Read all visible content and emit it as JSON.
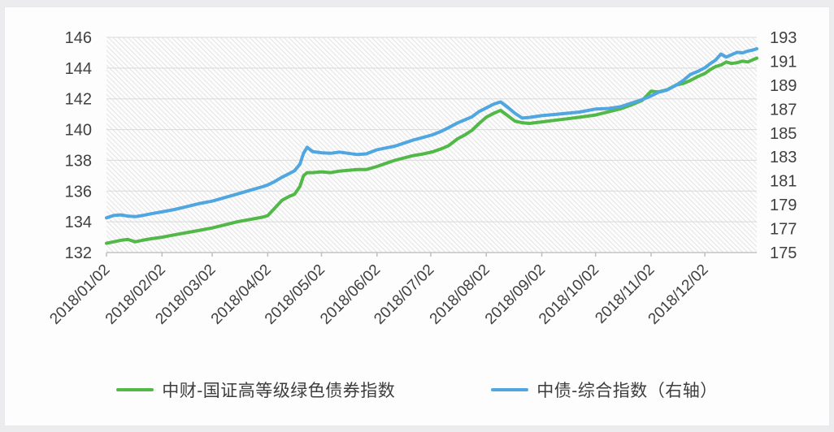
{
  "page": {
    "background_color": "#ececee",
    "card_color": "#fdfdfd"
  },
  "chart_data": {
    "type": "line",
    "title": "",
    "xlabel": "",
    "ylabel_left": "",
    "ylabel_right": "",
    "grid": "horizontal",
    "plot_background": "diagonal-hatch",
    "legend_position": "bottom",
    "x_axis": {
      "tick_labels": [
        "2018/01/02",
        "2018/02/02",
        "2018/03/02",
        "2018/04/02",
        "2018/05/02",
        "2018/06/02",
        "2018/07/02",
        "2018/08/02",
        "2018/09/02",
        "2018/10/02",
        "2018/11/02",
        "2018/12/02"
      ],
      "tick_days": [
        0,
        31,
        59,
        90,
        120,
        151,
        181,
        212,
        243,
        273,
        304,
        334
      ],
      "max_day": 363,
      "label_rotation_deg": 45
    },
    "left_axis": {
      "min": 132,
      "max": 146,
      "step": 2,
      "ticks": [
        146,
        144,
        142,
        140,
        138,
        136,
        134,
        132
      ]
    },
    "right_axis": {
      "min": 175,
      "max": 193,
      "step": 2,
      "ticks": [
        193,
        191,
        189,
        187,
        185,
        183,
        181,
        179,
        177,
        175
      ]
    },
    "days": [
      0,
      4,
      8,
      12,
      16,
      20,
      25,
      31,
      38,
      45,
      52,
      59,
      66,
      73,
      80,
      87,
      90,
      94,
      98,
      102,
      105,
      108,
      110,
      112,
      115,
      120,
      125,
      130,
      135,
      140,
      145,
      151,
      156,
      161,
      166,
      171,
      176,
      182,
      187,
      191,
      196,
      200,
      204,
      208,
      212,
      216,
      220,
      224,
      228,
      232,
      236,
      243,
      250,
      257,
      264,
      273,
      280,
      287,
      293,
      299,
      304,
      308,
      313,
      318,
      322,
      326,
      330,
      334,
      337,
      340,
      343,
      346,
      349,
      352,
      355,
      358,
      361,
      363
    ],
    "series": [
      {
        "name": "中财-国证高等级绿色债券指数",
        "axis": "left",
        "color": "#52b848",
        "values": [
          132.6,
          132.7,
          132.8,
          132.85,
          132.7,
          132.8,
          132.9,
          133.0,
          133.15,
          133.3,
          133.45,
          133.6,
          133.8,
          134.0,
          134.15,
          134.3,
          134.4,
          134.9,
          135.4,
          135.65,
          135.8,
          136.3,
          137.0,
          137.2,
          137.2,
          137.25,
          137.2,
          137.3,
          137.35,
          137.4,
          137.4,
          137.6,
          137.8,
          138.0,
          138.15,
          138.3,
          138.4,
          138.55,
          138.75,
          138.95,
          139.4,
          139.65,
          139.95,
          140.4,
          140.8,
          141.05,
          141.25,
          140.9,
          140.55,
          140.45,
          140.4,
          140.5,
          140.6,
          140.7,
          140.8,
          140.95,
          141.15,
          141.35,
          141.6,
          141.9,
          142.5,
          142.45,
          142.6,
          142.9,
          143.0,
          143.2,
          143.45,
          143.65,
          143.9,
          144.1,
          144.2,
          144.4,
          144.3,
          144.35,
          144.45,
          144.4,
          144.55,
          144.65
        ]
      },
      {
        "name": "中债-综合指数（右轴）",
        "axis": "right",
        "color": "#4fa6e0",
        "values": [
          177.9,
          178.1,
          178.15,
          178.05,
          178.0,
          178.1,
          178.25,
          178.4,
          178.6,
          178.85,
          179.1,
          179.3,
          179.6,
          179.9,
          180.2,
          180.5,
          180.65,
          180.95,
          181.3,
          181.6,
          181.85,
          182.4,
          183.3,
          183.8,
          183.45,
          183.35,
          183.3,
          183.4,
          183.3,
          183.2,
          183.25,
          183.6,
          183.75,
          183.9,
          184.15,
          184.4,
          184.6,
          184.85,
          185.15,
          185.45,
          185.85,
          186.1,
          186.35,
          186.8,
          187.1,
          187.4,
          187.6,
          187.15,
          186.65,
          186.25,
          186.3,
          186.45,
          186.55,
          186.65,
          186.75,
          187.0,
          187.05,
          187.2,
          187.5,
          187.8,
          188.1,
          188.4,
          188.6,
          189.0,
          189.4,
          189.9,
          190.15,
          190.45,
          190.8,
          191.1,
          191.6,
          191.35,
          191.55,
          191.75,
          191.7,
          191.85,
          191.95,
          192.05
        ]
      }
    ],
    "style": {
      "gridline_color": "#d9d9d9",
      "hatch_line_color": "#e4e4e7",
      "axis_line_color": "#c4c4c4",
      "tick_mark_color": "#bfbfbf",
      "axis_text_color": "#404040",
      "line_width": 4
    }
  }
}
